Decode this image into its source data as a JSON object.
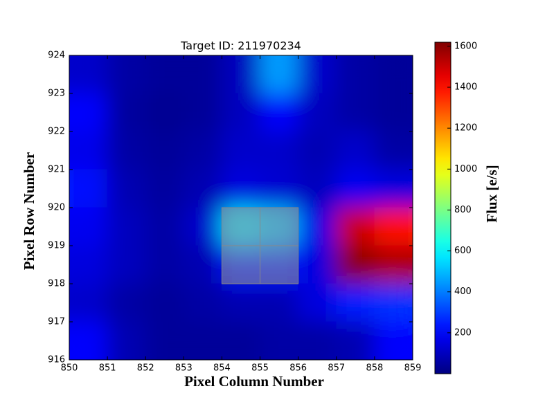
{
  "chart_data": {
    "type": "heatmap",
    "title": "Target ID: 211970234",
    "x_label": "Pixel Column Number",
    "y_label": "Pixel Row Number",
    "xlim": [
      850,
      859
    ],
    "ylim": [
      916,
      924
    ],
    "xticks": [
      850,
      851,
      852,
      853,
      854,
      855,
      856,
      857,
      858,
      859
    ],
    "yticks": [
      916,
      917,
      918,
      919,
      920,
      921,
      922,
      923,
      924
    ],
    "values": [
      [
        120,
        60,
        40,
        40,
        100,
        450,
        120,
        60,
        40
      ],
      [
        200,
        50,
        30,
        40,
        100,
        200,
        100,
        60,
        40
      ],
      [
        170,
        60,
        40,
        60,
        120,
        120,
        80,
        120,
        60
      ],
      [
        220,
        80,
        50,
        80,
        150,
        130,
        100,
        180,
        150
      ],
      [
        180,
        100,
        60,
        120,
        550,
        500,
        160,
        1500,
        1400
      ],
      [
        150,
        100,
        60,
        80,
        250,
        250,
        150,
        1600,
        1550
      ],
      [
        120,
        60,
        40,
        60,
        80,
        80,
        150,
        250,
        280
      ],
      [
        200,
        80,
        40,
        40,
        40,
        60,
        60,
        80,
        200
      ]
    ],
    "colormap": "jet",
    "clim": [
      0,
      1620
    ],
    "cticks": [
      200,
      400,
      600,
      800,
      1000,
      1200,
      1400,
      1600
    ],
    "colorbar_label": "Flux [e/s]"
  }
}
